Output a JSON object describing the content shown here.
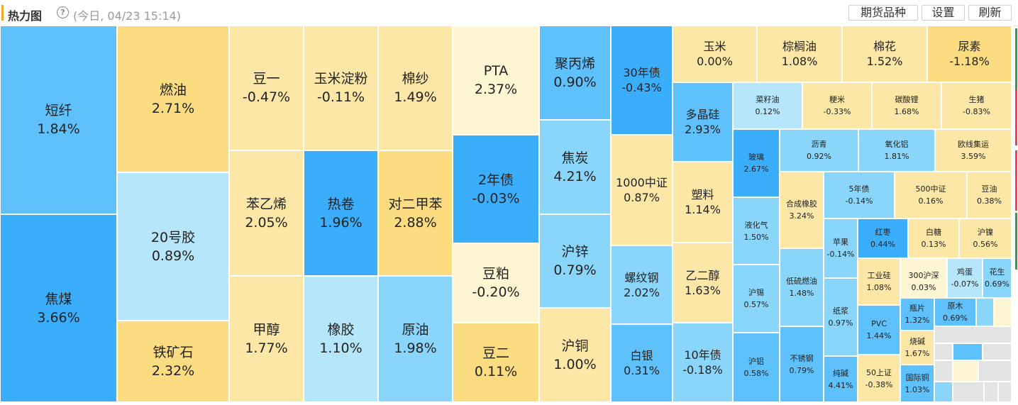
{
  "header": {
    "title": "热力图",
    "help_icon": "?",
    "timestamp": "(今日, 04/23 15:14)",
    "buttons": [
      "期货品种",
      "设置",
      "刷新"
    ]
  },
  "colors": {
    "strong_up": "#fbdc80",
    "up": "#fde7a6",
    "mild_up": "#fef5d3",
    "mild_down": "#b6e6fb",
    "down": "#8ad6fa",
    "strong_down": "#3aaefb",
    "blue_mid": "#5ec1fb",
    "empty": "#e3e3e3",
    "side_green": "#2e9e44",
    "side_red": "#e84545"
  },
  "tiles": [
    {
      "name": "短纤",
      "value": "1.84%"
    },
    {
      "name": "焦煤",
      "value": "3.66%"
    },
    {
      "name": "燃油",
      "value": "2.71%"
    },
    {
      "name": "20号胶",
      "value": "0.89%"
    },
    {
      "name": "铁矿石",
      "value": "2.32%"
    },
    {
      "name": "豆一",
      "value": "-0.47%"
    },
    {
      "name": "玉米淀粉",
      "value": "-0.11%"
    },
    {
      "name": "棉纱",
      "value": "1.49%"
    },
    {
      "name": "苯乙烯",
      "value": "2.05%"
    },
    {
      "name": "热卷",
      "value": "1.96%"
    },
    {
      "name": "对二甲苯",
      "value": "2.88%"
    },
    {
      "name": "甲醇",
      "value": "1.77%"
    },
    {
      "name": "橡胶",
      "value": "1.10%"
    },
    {
      "name": "原油",
      "value": "1.98%"
    },
    {
      "name": "PTA",
      "value": "2.37%"
    },
    {
      "name": "2年债",
      "value": "-0.03%"
    },
    {
      "name": "豆粕",
      "value": "-0.20%"
    },
    {
      "name": "豆二",
      "value": "0.11%"
    },
    {
      "name": "聚丙烯",
      "value": "0.90%"
    },
    {
      "name": "焦炭",
      "value": "4.21%"
    },
    {
      "name": "沪锌",
      "value": "0.79%"
    },
    {
      "name": "沪铜",
      "value": "1.00%"
    },
    {
      "name": "30年债",
      "value": "-0.43%"
    },
    {
      "name": "1000中证",
      "value": "0.87%"
    },
    {
      "name": "螺纹钢",
      "value": "2.02%"
    },
    {
      "name": "白银",
      "value": "0.31%"
    },
    {
      "name": "玉米",
      "value": "0.00%"
    },
    {
      "name": "棕榈油",
      "value": "1.08%"
    },
    {
      "name": "棉花",
      "value": "1.52%"
    },
    {
      "name": "尿素",
      "value": "-1.18%"
    },
    {
      "name": "多晶硅",
      "value": "2.93%"
    },
    {
      "name": "塑料",
      "value": "1.14%"
    },
    {
      "name": "乙二醇",
      "value": "1.63%"
    },
    {
      "name": "10年债",
      "value": "-0.18%"
    },
    {
      "name": "菜籽油",
      "value": "0.12%"
    },
    {
      "name": "粳米",
      "value": "-0.33%"
    },
    {
      "name": "碳酸锂",
      "value": "1.68%"
    },
    {
      "name": "生猪",
      "value": "-0.83%"
    },
    {
      "name": "玻璃",
      "value": "2.67%"
    },
    {
      "name": "沥青",
      "value": "0.92%"
    },
    {
      "name": "氧化铝",
      "value": "1.81%"
    },
    {
      "name": "欧线集运",
      "value": "3.59%"
    },
    {
      "name": "液化气",
      "value": "1.50%"
    },
    {
      "name": "合成橡胶",
      "value": "3.24%"
    },
    {
      "name": "5年债",
      "value": "-0.14%"
    },
    {
      "name": "500中证",
      "value": "0.16%"
    },
    {
      "name": "豆油",
      "value": "0.38%"
    },
    {
      "name": "苹果",
      "value": "-0.14%"
    },
    {
      "name": "红枣",
      "value": "0.44%"
    },
    {
      "name": "白糖",
      "value": "0.13%"
    },
    {
      "name": "沪镍",
      "value": "0.56%"
    },
    {
      "name": "沪锡",
      "value": "0.57%"
    },
    {
      "name": "低硫燃油",
      "value": "1.48%"
    },
    {
      "name": "工业硅",
      "value": "1.08%"
    },
    {
      "name": "300沪深",
      "value": "0.03%"
    },
    {
      "name": "鸡蛋",
      "value": "-0.07%"
    },
    {
      "name": "花生",
      "value": "0.69%"
    },
    {
      "name": "纸浆",
      "value": "0.97%"
    },
    {
      "name": "PVC",
      "value": "1.44%"
    },
    {
      "name": "瓶片",
      "value": "1.32%"
    },
    {
      "name": "原木",
      "value": "0.69%"
    },
    {
      "name": "沪铝",
      "value": "0.58%"
    },
    {
      "name": "不锈钢",
      "value": "0.79%"
    },
    {
      "name": "纯碱",
      "value": "4.41%"
    },
    {
      "name": "烧碱",
      "value": "1.67%"
    },
    {
      "name": "50上证",
      "value": "-0.38%"
    },
    {
      "name": "国际铜",
      "value": "1.03%"
    }
  ]
}
